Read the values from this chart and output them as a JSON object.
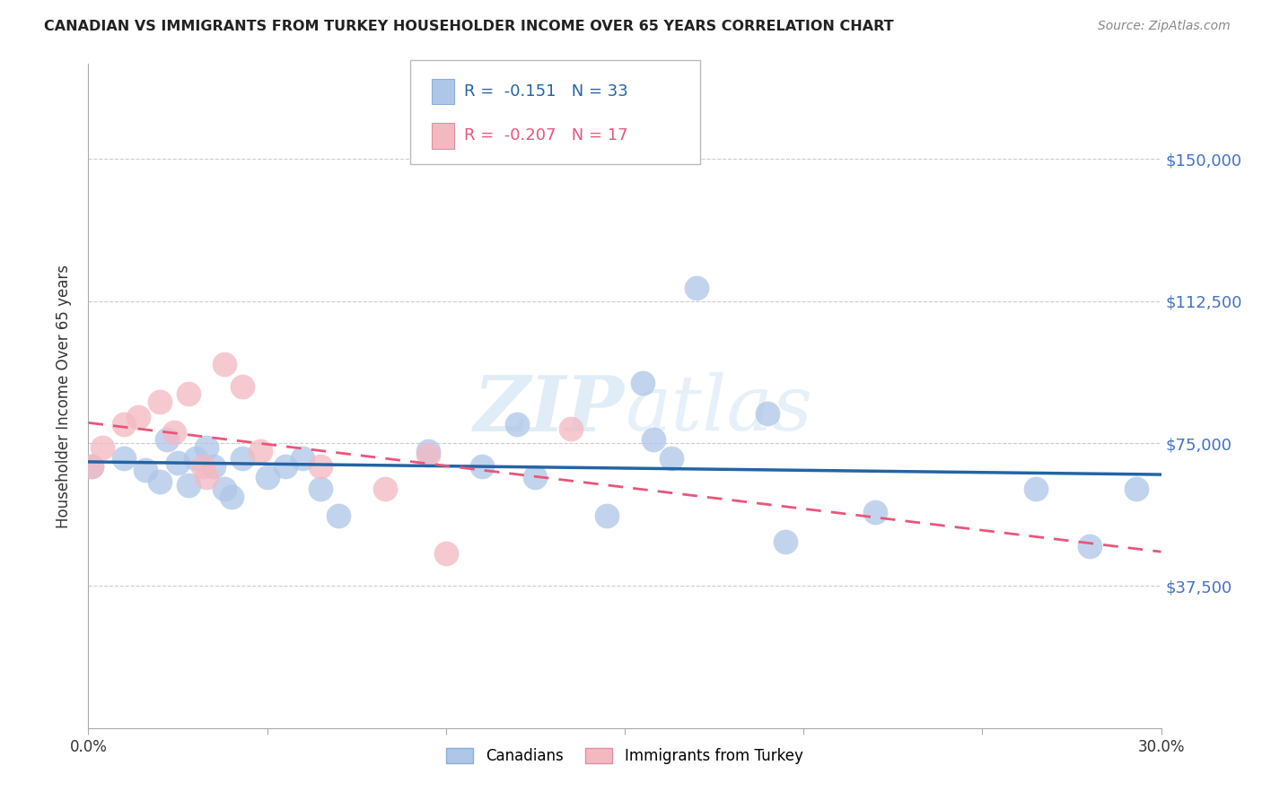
{
  "title": "CANADIAN VS IMMIGRANTS FROM TURKEY HOUSEHOLDER INCOME OVER 65 YEARS CORRELATION CHART",
  "source": "Source: ZipAtlas.com",
  "ylabel": "Householder Income Over 65 years",
  "xlim": [
    0.0,
    0.3
  ],
  "ylim": [
    0,
    175000
  ],
  "yticks": [
    0,
    37500,
    75000,
    112500,
    150000
  ],
  "ytick_labels": [
    "",
    "$37,500",
    "$75,000",
    "$112,500",
    "$150,000"
  ],
  "xticks": [
    0.0,
    0.05,
    0.1,
    0.15,
    0.2,
    0.25,
    0.3
  ],
  "xtick_labels": [
    "0.0%",
    "",
    "",
    "",
    "",
    "",
    "30.0%"
  ],
  "grid_color": "#cccccc",
  "background_color": "#ffffff",
  "watermark": "ZIPatlas",
  "legend_R_canadian": "-0.151",
  "legend_N_canadian": "33",
  "legend_R_turkey": "-0.207",
  "legend_N_turkey": "17",
  "canadian_color": "#aec6e8",
  "turkey_color": "#f4b8c1",
  "canadian_line_color": "#2464a4",
  "turkey_line_color": "#e8567a",
  "canadian_x": [
    0.001,
    0.01,
    0.016,
    0.02,
    0.022,
    0.025,
    0.028,
    0.03,
    0.033,
    0.035,
    0.038,
    0.04,
    0.043,
    0.05,
    0.055,
    0.06,
    0.065,
    0.07,
    0.095,
    0.11,
    0.12,
    0.125,
    0.145,
    0.155,
    0.158,
    0.163,
    0.17,
    0.19,
    0.195,
    0.22,
    0.265,
    0.28,
    0.293
  ],
  "canadian_y": [
    69000,
    71000,
    68000,
    65000,
    76000,
    70000,
    64000,
    71000,
    74000,
    69000,
    63000,
    61000,
    71000,
    66000,
    69000,
    71000,
    63000,
    56000,
    73000,
    69000,
    80000,
    66000,
    56000,
    91000,
    76000,
    71000,
    116000,
    83000,
    49000,
    57000,
    63000,
    48000,
    63000
  ],
  "turkey_x": [
    0.001,
    0.004,
    0.01,
    0.014,
    0.02,
    0.024,
    0.028,
    0.032,
    0.033,
    0.038,
    0.043,
    0.048,
    0.065,
    0.083,
    0.095,
    0.1,
    0.135
  ],
  "turkey_y": [
    69000,
    74000,
    80000,
    82000,
    86000,
    78000,
    88000,
    69000,
    66000,
    96000,
    90000,
    73000,
    69000,
    63000,
    72000,
    46000,
    79000
  ]
}
